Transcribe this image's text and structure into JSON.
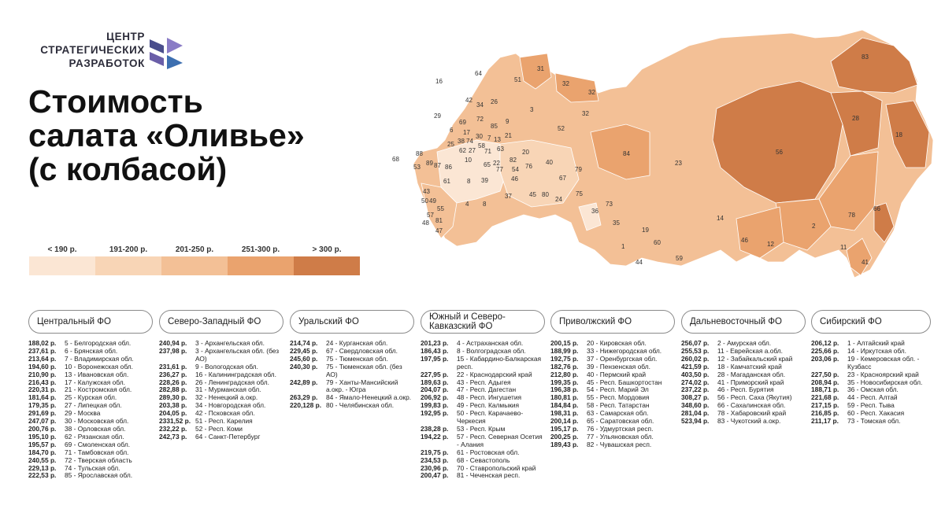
{
  "logo": {
    "line1": "ЦЕНТР",
    "line2": "СТРАТЕГИЧЕСКИХ",
    "line3": "РАЗРАБОТОК"
  },
  "title": {
    "line1": "Стоимость",
    "line2": "салата «Оливье»",
    "line3": "(с колбасой)"
  },
  "colors": {
    "c1": "#fbe6d4",
    "c2": "#f8d5b6",
    "c3": "#f3c096",
    "c4": "#eaa36e",
    "c5": "#cf7c48"
  },
  "legend": [
    {
      "label": "< 190 р.",
      "color": "#fbe6d4"
    },
    {
      "label": "191-200 р.",
      "color": "#f8d5b6"
    },
    {
      "label": "201-250 р.",
      "color": "#f3c096"
    },
    {
      "label": "251-300 р.",
      "color": "#eaa36e"
    },
    {
      "label": "> 300 р.",
      "color": "#cf7c48"
    }
  ],
  "map_labels": [
    "16",
    "64",
    "51",
    "31",
    "32",
    "32",
    "42",
    "34",
    "26",
    "3",
    "69",
    "72",
    "85",
    "9",
    "29",
    "6",
    "17",
    "30",
    "38",
    "74",
    "7",
    "13",
    "21",
    "25",
    "62",
    "58",
    "71",
    "27",
    "63",
    "52",
    "32",
    "88",
    "89",
    "87",
    "86",
    "10",
    "65",
    "22",
    "77",
    "82",
    "54",
    "20",
    "76",
    "40",
    "84",
    "68",
    "53",
    "61",
    "8",
    "39",
    "46",
    "80",
    "67",
    "79",
    "23",
    "56",
    "83",
    "28",
    "18",
    "43",
    "50",
    "49",
    "4",
    "45",
    "24",
    "75",
    "37",
    "36",
    "73",
    "19",
    "14",
    "2",
    "78",
    "66",
    "35",
    "60",
    "1",
    "44",
    "59",
    "46",
    "12",
    "11",
    "41",
    "57",
    "48",
    "81",
    "47",
    "8",
    "55"
  ],
  "districts": [
    {
      "name": "Центральный ФО",
      "items": [
        {
          "price": "188,02 р.",
          "region": "5 - Белгородская обл."
        },
        {
          "price": "237,61 р.",
          "region": "6 - Брянская обл."
        },
        {
          "price": "213,64 р.",
          "region": "7 - Владимирская обл."
        },
        {
          "price": "194,60 р.",
          "region": "10 - Воронежская обл."
        },
        {
          "price": "210,90 р.",
          "region": "13 - Ивановская обл."
        },
        {
          "price": "216,43 р.",
          "region": "17 - Калужская обл."
        },
        {
          "price": "220,31 р.",
          "region": "21 - Костромская обл."
        },
        {
          "price": "181,64 р.",
          "region": "25 - Курская обл."
        },
        {
          "price": "179,35 р.",
          "region": "27 - Липецкая обл."
        },
        {
          "price": "291,69 р.",
          "region": "29 - Москва"
        },
        {
          "price": "247,07 р.",
          "region": "30 - Московская обл."
        },
        {
          "price": "200,76 р.",
          "region": "38 - Орловская обл."
        },
        {
          "price": "195,10 р.",
          "region": "62 - Рязанская обл."
        },
        {
          "price": "195,57 р.",
          "region": "69 - Смоленская обл."
        },
        {
          "price": "184,70 р.",
          "region": "71 - Тамбовская обл."
        },
        {
          "price": "240,55 р.",
          "region": "72 - Тверская область"
        },
        {
          "price": "229,13 р.",
          "region": "74 - Тульская обл."
        },
        {
          "price": "222,53 р.",
          "region": "85 - Ярославская обл."
        }
      ]
    },
    {
      "name": "Северо-Западный ФО",
      "items": [
        {
          "price": "240,94 р.",
          "region": "3 - Архангельская обл."
        },
        {
          "price": "237,98 р.",
          "region": "3 - Архангельская обл. (без АО)"
        },
        {
          "price": "231,61 р.",
          "region": "9 - Вологодская обл."
        },
        {
          "price": "236,27 р.",
          "region": "16 - Калининградская обл."
        },
        {
          "price": "228,26 р.",
          "region": "26 - Ленинградская обл."
        },
        {
          "price": "282,88 р.",
          "region": "31 - Мурманская обл."
        },
        {
          "price": "289,30 р.",
          "region": "32 - Ненецкий а.окр."
        },
        {
          "price": "203,38 р.",
          "region": "34 - Новгородская обл."
        },
        {
          "price": "204,05 р.",
          "region": "42 - Псковская обл."
        },
        {
          "price": "2331,52 р.",
          "region": "51 - Респ. Карелия"
        },
        {
          "price": "232,22 р.",
          "region": "52 - Респ. Коми"
        },
        {
          "price": "242,73 р.",
          "region": "64 - Санкт-Петербург"
        }
      ]
    },
    {
      "name": "Уральский ФО",
      "items": [
        {
          "price": "214,74 р.",
          "region": "24 - Курганская обл."
        },
        {
          "price": "229,45 р.",
          "region": "67 - Свердловская обл."
        },
        {
          "price": "245,60 р.",
          "region": "75 - Тюменская обл."
        },
        {
          "price": "240,30 р.",
          "region": "75 - Тюменская обл. (без АО)"
        },
        {
          "price": "242,89 р.",
          "region": "79 - Ханты-Мансийский а.окр. - Югра"
        },
        {
          "price": "263,29 р.",
          "region": "84 - Ямало-Ненецкий а.окр."
        },
        {
          "price": "220,128 р.",
          "region": "80 - Челябинская обл."
        }
      ]
    },
    {
      "name": "Южный и Северо-Кавказский ФО",
      "items": [
        {
          "price": "201,23 р.",
          "region": "4 - Астраханская обл."
        },
        {
          "price": "186,43 р.",
          "region": "8 - Волгоградская обл."
        },
        {
          "price": "197,95 р.",
          "region": "15 - Кабардино-Балкарская респ."
        },
        {
          "price": "227,95 р.",
          "region": "22 - Краснодарский край"
        },
        {
          "price": "189,63 р.",
          "region": "43 - Респ. Адыгея"
        },
        {
          "price": "204,07 р.",
          "region": "47 - Респ. Дагестан"
        },
        {
          "price": "206,92 р.",
          "region": "48 - Респ. Ингушетия"
        },
        {
          "price": "199,83 р.",
          "region": "49 - Респ. Калмыкия"
        },
        {
          "price": "192,95 р.",
          "region": "50 - Респ. Карачаево-Черкесия"
        },
        {
          "price": "238,28 р.",
          "region": "53 - Респ. Крым"
        },
        {
          "price": "194,22 р.",
          "region": "57 - Респ. Северная Осетия - Алания"
        },
        {
          "price": "219,75 р.",
          "region": "61 - Ростовская обл."
        },
        {
          "price": "234,53 р.",
          "region": "68 - Севастополь"
        },
        {
          "price": "230,96 р.",
          "region": "70 - Ставропольский край"
        },
        {
          "price": "200,47 р.",
          "region": "81 - Чеченская респ."
        }
      ]
    },
    {
      "name": "Приволжский ФО",
      "items": [
        {
          "price": "200,15 р.",
          "region": "20 - Кировская обл."
        },
        {
          "price": "188,99 р.",
          "region": "33 - Нижегородская обл."
        },
        {
          "price": "192,75 р.",
          "region": "37 - Оренбургская обл."
        },
        {
          "price": "182,76 р.",
          "region": "39 - Пензенская обл."
        },
        {
          "price": "212,80 р.",
          "region": "40 - Пермский край"
        },
        {
          "price": "199,35 р.",
          "region": "45 - Респ. Башкортостан"
        },
        {
          "price": "196,38 р.",
          "region": "54 - Респ. Марий Эл"
        },
        {
          "price": "180,81 р.",
          "region": "55 - Респ. Мордовия"
        },
        {
          "price": "184,84 р.",
          "region": "58 - Респ. Татарстан"
        },
        {
          "price": "198,31 р.",
          "region": "63 - Самарская обл."
        },
        {
          "price": "200,14 р.",
          "region": "65 - Саратовская обл."
        },
        {
          "price": "195,17 р.",
          "region": "76 - Удмуртская респ."
        },
        {
          "price": "200,25 р.",
          "region": "77 - Ульяновская обл."
        },
        {
          "price": "189,43 р.",
          "region": "82 - Чувашская респ."
        }
      ]
    },
    {
      "name": "Дальневосточный ФО",
      "items": [
        {
          "price": "256,07 р.",
          "region": "2 - Амурская обл."
        },
        {
          "price": "255,53 р.",
          "region": "11 - Еврейская а.обл."
        },
        {
          "price": "260,02 р.",
          "region": "12 - Забайкальский край"
        },
        {
          "price": "421,59 р.",
          "region": "18 - Камчатский край"
        },
        {
          "price": "403,50 р.",
          "region": "28 - Магаданская обл."
        },
        {
          "price": "274,02 р.",
          "region": "41 - Приморский край"
        },
        {
          "price": "237,22 р.",
          "region": "46 - Респ. Бурятия"
        },
        {
          "price": "308,27 р.",
          "region": "56 - Респ. Саха (Якутия)"
        },
        {
          "price": "348,60 р.",
          "region": "66 - Сахалинская обл."
        },
        {
          "price": "281,04 р.",
          "region": "78 - Хабаровский край"
        },
        {
          "price": "523,94 р.",
          "region": "83 - Чукотский а.окр."
        }
      ]
    },
    {
      "name": "Сибирский ФО",
      "items": [
        {
          "price": "206,12 р.",
          "region": "1 - Алтайский край"
        },
        {
          "price": "225,66 р.",
          "region": "14 - Иркутская обл."
        },
        {
          "price": "203,06 р.",
          "region": "19 - Кемеровская обл. - Кузбасс"
        },
        {
          "price": "227,50 р.",
          "region": "23 - Красноярский край"
        },
        {
          "price": "208,94 р.",
          "region": "35 - Новосибирская обл."
        },
        {
          "price": "188,71 р.",
          "region": "36 - Омская обл."
        },
        {
          "price": "221,68 р.",
          "region": "44 - Респ. Алтай"
        },
        {
          "price": "217,15 р.",
          "region": "59 - Респ. Тыва"
        },
        {
          "price": "216,85 р.",
          "region": "60 - Респ. Хакасия"
        },
        {
          "price": "211,17 р.",
          "region": "73 - Томская обл."
        }
      ]
    }
  ]
}
